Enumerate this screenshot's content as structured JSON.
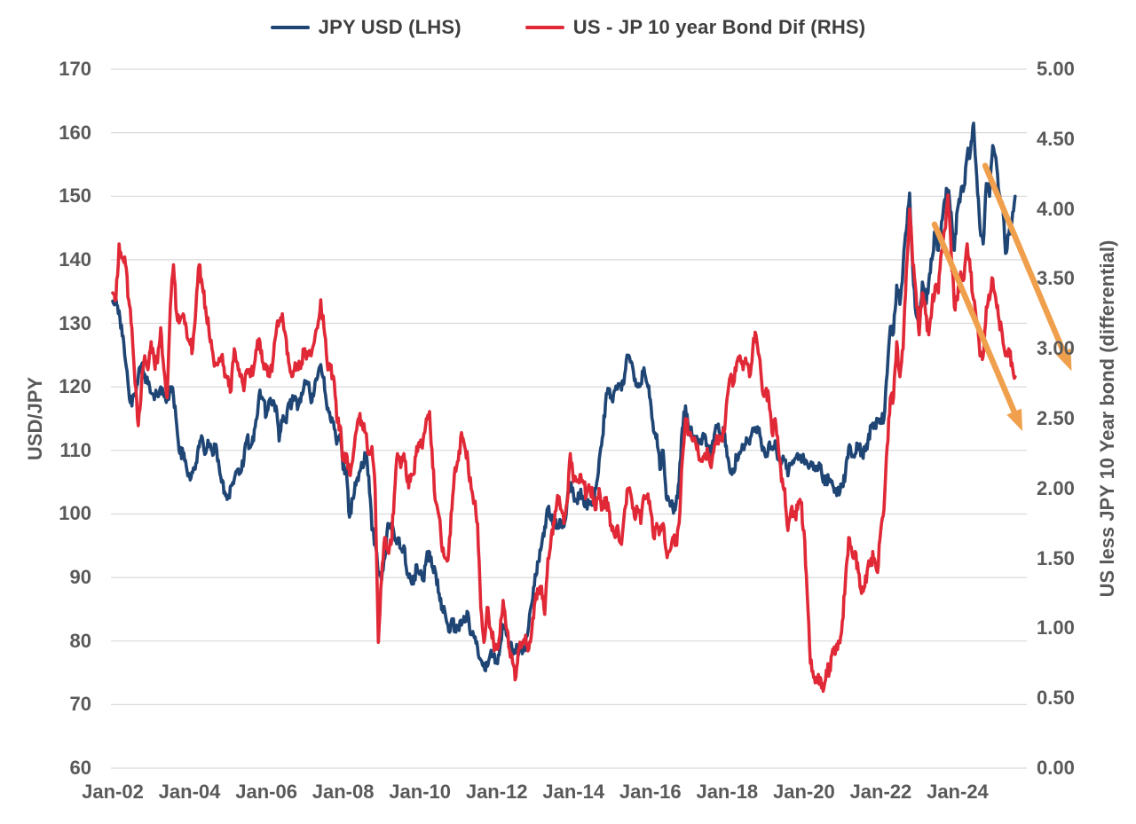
{
  "chart_data": {
    "type": "line",
    "title": "",
    "legend": [
      {
        "name": "JPY USD (LHS)",
        "color": "#1f4575",
        "axis": "left"
      },
      {
        "name": "US - JP 10 year Bond Dif (RHS)",
        "color": "#e02836",
        "axis": "right"
      }
    ],
    "legend_position": "top",
    "grid": "horizontal",
    "grid_color": "#d9d9d9",
    "axis_left": {
      "label": "USD/JPY",
      "min": 60,
      "max": 170,
      "step": 10,
      "ticks": [
        60,
        70,
        80,
        90,
        100,
        110,
        120,
        130,
        140,
        150,
        160,
        170
      ]
    },
    "axis_right": {
      "label": "US less JPY 10 Year bond (differential)",
      "min": 0,
      "max": 5,
      "step": 0.5,
      "ticks": [
        0.0,
        0.5,
        1.0,
        1.5,
        2.0,
        2.5,
        3.0,
        3.5,
        4.0,
        4.5,
        5.0
      ]
    },
    "axis_x": {
      "tick_labels": [
        "Jan-02",
        "Jan-04",
        "Jan-06",
        "Jan-08",
        "Jan-10",
        "Jan-12",
        "Jan-14",
        "Jan-16",
        "Jan-18",
        "Jan-20",
        "Jan-22",
        "Jan-24"
      ],
      "tick_years": [
        2002,
        2004,
        2006,
        2008,
        2010,
        2012,
        2014,
        2016,
        2018,
        2020,
        2022,
        2024
      ],
      "data_start_year": 2002.0,
      "data_end_year": 2025.5,
      "step_months": 1
    },
    "series": [
      {
        "name": "JPY USD (LHS)",
        "axis": "left",
        "color": "#1f4575",
        "values": [
          133.5,
          134.0,
          132.0,
          128.0,
          124.0,
          119.5,
          117.0,
          119.0,
          121.5,
          123.5,
          122.0,
          120.5,
          119.0,
          118.0,
          119.0,
          120.0,
          118.5,
          118.0,
          120.0,
          118.5,
          114.0,
          109.5,
          109.5,
          107.5,
          106.0,
          106.5,
          108.0,
          110.5,
          112.0,
          109.5,
          111.0,
          110.0,
          110.5,
          108.5,
          105.0,
          103.5,
          102.5,
          104.5,
          105.5,
          107.0,
          106.5,
          108.5,
          112.0,
          110.5,
          111.5,
          115.0,
          119.5,
          118.0,
          115.5,
          118.0,
          117.5,
          117.0,
          111.5,
          114.5,
          114.5,
          117.5,
          117.5,
          118.5,
          117.0,
          119.0,
          121.0,
          120.5,
          117.5,
          119.5,
          121.5,
          123.5,
          121.5,
          116.5,
          115.0,
          114.5,
          111.0,
          112.5,
          107.0,
          107.0,
          99.5,
          102.5,
          104.5,
          106.5,
          107.5,
          109.5,
          106.0,
          97.5,
          95.5,
          90.5,
          89.5,
          93.0,
          98.5,
          98.5,
          96.5,
          96.0,
          94.5,
          95.0,
          90.5,
          90.0,
          89.0,
          92.0,
          90.5,
          89.5,
          93.0,
          94.0,
          91.5,
          90.5,
          87.5,
          85.0,
          84.0,
          81.5,
          83.5,
          81.5,
          82.0,
          82.5,
          83.0,
          84.5,
          81.0,
          80.5,
          79.0,
          77.0,
          76.5,
          76.0,
          78.0,
          77.5,
          76.5,
          79.0,
          82.5,
          81.0,
          79.5,
          78.5,
          78.5,
          78.5,
          78.0,
          79.5,
          82.5,
          86.0,
          90.5,
          92.5,
          95.0,
          98.0,
          101.0,
          99.0,
          98.5,
          98.0,
          98.5,
          98.0,
          102.0,
          104.5,
          103.0,
          102.0,
          103.0,
          102.5,
          101.5,
          101.5,
          102.0,
          104.0,
          108.5,
          112.0,
          117.5,
          119.5,
          118.0,
          119.5,
          120.5,
          119.5,
          122.0,
          125.0,
          124.0,
          121.0,
          120.0,
          120.5,
          123.0,
          120.5,
          118.0,
          113.0,
          112.5,
          107.0,
          110.0,
          102.5,
          102.0,
          101.0,
          101.5,
          105.0,
          113.5,
          117.0,
          113.5,
          112.5,
          111.5,
          111.0,
          111.0,
          112.5,
          110.5,
          109.5,
          112.5,
          114.0,
          112.0,
          113.0,
          109.0,
          106.5,
          106.5,
          109.0,
          109.5,
          110.5,
          112.0,
          111.0,
          113.5,
          113.0,
          113.5,
          110.0,
          109.0,
          111.0,
          110.5,
          111.5,
          108.5,
          108.0,
          108.5,
          106.0,
          108.0,
          108.5,
          109.5,
          108.5,
          108.5,
          108.0,
          107.5,
          107.0,
          107.5,
          107.5,
          105.0,
          105.5,
          105.5,
          104.5,
          104.0,
          103.0,
          104.5,
          106.5,
          110.5,
          109.0,
          109.5,
          111.0,
          109.5,
          110.0,
          111.5,
          114.0,
          113.5,
          115.0,
          115.0,
          115.0,
          122.0,
          129.5,
          128.5,
          136.0,
          133.0,
          139.0,
          144.5,
          150.5,
          138.5,
          131.5,
          129.5,
          136.5,
          133.0,
          136.5,
          140.0,
          144.5,
          141.5,
          146.0,
          149.5,
          151.0,
          147.5,
          141.5,
          148.0,
          150.5,
          151.5,
          156.5,
          157.0,
          161.5,
          153.0,
          145.0,
          142.5,
          152.0,
          150.0,
          158.0,
          156.0,
          150.5,
          149.0,
          141.0,
          144.0,
          146.0,
          150.0
        ]
      },
      {
        "name": "US - JP 10 year Bond Dif (RHS)",
        "axis": "right",
        "color": "#e02836",
        "values": [
          3.4,
          3.35,
          3.75,
          3.65,
          3.6,
          3.35,
          3.15,
          2.75,
          2.45,
          2.75,
          2.95,
          2.85,
          3.05,
          2.9,
          2.9,
          3.15,
          2.85,
          2.65,
          3.3,
          3.6,
          3.25,
          3.2,
          3.25,
          3.15,
          3.05,
          3.0,
          3.3,
          3.6,
          3.45,
          3.3,
          3.15,
          3.0,
          2.9,
          2.9,
          2.95,
          2.8,
          2.8,
          2.7,
          3.0,
          2.9,
          2.8,
          2.7,
          2.85,
          2.8,
          2.85,
          3.0,
          3.05,
          2.9,
          2.85,
          2.8,
          2.9,
          3.1,
          3.2,
          3.25,
          3.1,
          2.9,
          2.8,
          2.9,
          2.85,
          2.9,
          3.0,
          2.95,
          2.95,
          3.05,
          3.15,
          3.35,
          3.15,
          2.9,
          2.85,
          2.8,
          2.5,
          2.45,
          2.2,
          2.25,
          2.1,
          2.2,
          2.4,
          2.5,
          2.45,
          2.4,
          2.25,
          2.3,
          2.0,
          0.9,
          1.35,
          1.65,
          1.55,
          1.6,
          1.95,
          2.25,
          2.15,
          2.25,
          2.05,
          2.05,
          2.1,
          2.3,
          2.3,
          2.35,
          2.5,
          2.55,
          2.15,
          1.9,
          1.8,
          1.55,
          1.5,
          1.55,
          1.85,
          2.15,
          2.2,
          2.4,
          2.3,
          2.2,
          2.0,
          1.9,
          1.75,
          1.15,
          0.9,
          1.15,
          1.0,
          0.9,
          0.85,
          0.95,
          1.2,
          1.0,
          0.85,
          0.75,
          0.65,
          0.85,
          0.9,
          0.95,
          0.85,
          1.0,
          1.2,
          1.25,
          1.3,
          1.1,
          1.5,
          1.65,
          1.75,
          1.95,
          1.85,
          1.75,
          1.9,
          2.25,
          2.05,
          2.05,
          2.1,
          2.05,
          1.95,
          2.0,
          1.95,
          1.85,
          2.0,
          1.85,
          1.9,
          1.85,
          1.7,
          1.65,
          1.7,
          1.6,
          1.85,
          2.0,
          1.95,
          1.8,
          1.85,
          1.75,
          1.95,
          1.95,
          1.85,
          1.65,
          1.75,
          1.7,
          1.75,
          1.55,
          1.55,
          1.65,
          1.6,
          1.75,
          2.2,
          2.5,
          2.4,
          2.35,
          2.35,
          2.25,
          2.2,
          2.25,
          2.25,
          2.15,
          2.3,
          2.35,
          2.35,
          2.4,
          2.65,
          2.8,
          2.75,
          2.9,
          2.95,
          2.85,
          2.9,
          2.8,
          3.0,
          3.1,
          2.95,
          2.7,
          2.7,
          2.65,
          2.4,
          2.5,
          2.3,
          2.05,
          2.0,
          1.7,
          1.85,
          1.8,
          1.85,
          1.9,
          1.7,
          1.25,
          0.75,
          0.65,
          0.65,
          0.65,
          0.55,
          0.7,
          0.7,
          0.85,
          0.85,
          0.9,
          1.05,
          1.35,
          1.65,
          1.55,
          1.55,
          1.4,
          1.25,
          1.3,
          1.45,
          1.5,
          1.5,
          1.4,
          1.7,
          1.85,
          2.3,
          2.65,
          2.65,
          3.05,
          2.8,
          3.0,
          3.55,
          4.0,
          3.6,
          3.4,
          3.1,
          3.4,
          3.25,
          3.1,
          3.3,
          3.45,
          3.4,
          3.7,
          3.85,
          4.1,
          3.7,
          3.3,
          3.35,
          3.55,
          3.5,
          3.75,
          3.55,
          3.35,
          3.2,
          2.95,
          2.95,
          3.3,
          3.35,
          3.5,
          3.35,
          3.2,
          3.1,
          2.95,
          3.0,
          2.9,
          2.8
        ]
      }
    ],
    "annotations": {
      "arrows": [
        {
          "name": "downtrend-arrow-right",
          "color": "#f0a04c",
          "axis": "right",
          "t1": 2024.72,
          "v1": 4.31,
          "t2": 2026.97,
          "v2": 2.84
        },
        {
          "name": "downtrend-arrow-left",
          "color": "#f0a04c",
          "axis": "right",
          "t1": 2023.4,
          "v1": 3.89,
          "t2": 2025.69,
          "v2": 2.41
        }
      ]
    },
    "render_hints": {
      "background": "#ffffff",
      "line_width": 3.6,
      "daily_noise_lhs": 1.0,
      "daily_noise_rhs": 0.05
    }
  }
}
